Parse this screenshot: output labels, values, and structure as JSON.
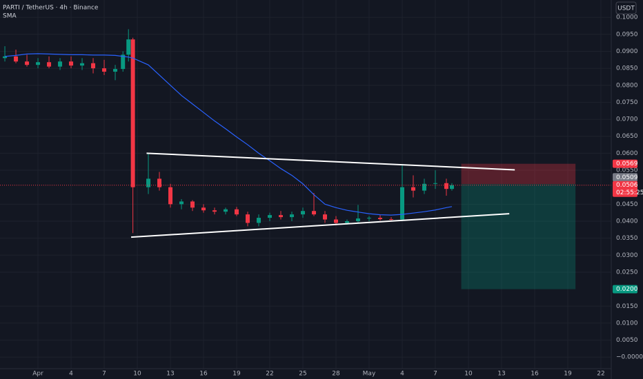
{
  "chart_data": {
    "type": "candlestick",
    "title": "PARTI / TetherUS · 4h · Binance",
    "currency": "USDT",
    "up_color": "#089981",
    "down_color": "#f23645",
    "x": [
      -3,
      -2,
      -1,
      0,
      1,
      2,
      3,
      4,
      5,
      6,
      7,
      7.7,
      8.2,
      8.6,
      10,
      11,
      12,
      13,
      14,
      15,
      16,
      17,
      18,
      19,
      20,
      21,
      22,
      23,
      24,
      25,
      26,
      27,
      28,
      29,
      30,
      31,
      32,
      33,
      34,
      35,
      36,
      37,
      37.5
    ],
    "open": [
      0.088,
      0.0885,
      0.087,
      0.086,
      0.0868,
      0.0855,
      0.087,
      0.0858,
      0.0865,
      0.085,
      0.084,
      0.0848,
      0.089,
      0.0935,
      0.05,
      0.0525,
      0.05,
      0.045,
      0.0458,
      0.044,
      0.0432,
      0.0428,
      0.0435,
      0.042,
      0.0395,
      0.041,
      0.0418,
      0.0412,
      0.042,
      0.043,
      0.042,
      0.0405,
      0.0395,
      0.04,
      0.0408,
      0.041,
      0.0406,
      0.0405,
      0.05,
      0.049,
      0.051,
      0.0512,
      0.0495
    ],
    "high": [
      0.0915,
      0.0905,
      0.089,
      0.088,
      0.0885,
      0.088,
      0.0885,
      0.088,
      0.088,
      0.0875,
      0.086,
      0.09,
      0.0965,
      0.094,
      0.06,
      0.0545,
      0.051,
      0.0465,
      0.0462,
      0.045,
      0.044,
      0.044,
      0.0442,
      0.0428,
      0.042,
      0.0425,
      0.043,
      0.0428,
      0.044,
      0.0483,
      0.043,
      0.0415,
      0.0405,
      0.0448,
      0.0415,
      0.0418,
      0.0412,
      0.0564,
      0.0535,
      0.0525,
      0.055,
      0.0525,
      0.0512
    ],
    "low": [
      0.087,
      0.0865,
      0.0855,
      0.085,
      0.085,
      0.0845,
      0.085,
      0.0845,
      0.0835,
      0.083,
      0.0815,
      0.084,
      0.087,
      0.0365,
      0.048,
      0.049,
      0.044,
      0.0435,
      0.043,
      0.0425,
      0.042,
      0.042,
      0.0415,
      0.0385,
      0.0385,
      0.04,
      0.0405,
      0.04,
      0.041,
      0.0415,
      0.0395,
      0.0388,
      0.039,
      0.0395,
      0.04,
      0.0402,
      0.04,
      0.04,
      0.047,
      0.048,
      0.0495,
      0.0475,
      0.049
    ],
    "close": [
      0.0885,
      0.087,
      0.086,
      0.0868,
      0.0855,
      0.087,
      0.0858,
      0.0865,
      0.085,
      0.084,
      0.0848,
      0.089,
      0.0935,
      0.05,
      0.0525,
      0.05,
      0.045,
      0.0458,
      0.044,
      0.0432,
      0.0428,
      0.0435,
      0.042,
      0.0395,
      0.041,
      0.0418,
      0.0412,
      0.042,
      0.043,
      0.042,
      0.0405,
      0.0395,
      0.04,
      0.0408,
      0.041,
      0.0406,
      0.0405,
      0.05,
      0.049,
      0.051,
      0.0512,
      0.0495,
      0.0506
    ],
    "sma": {
      "name": "SMA",
      "color": "#2962ff",
      "values": [
        0.0885,
        0.0888,
        0.0892,
        0.0893,
        0.0892,
        0.0891,
        0.089,
        0.089,
        0.0889,
        0.0889,
        0.0888,
        0.0885,
        0.0883,
        0.088,
        0.086,
        0.083,
        0.08,
        0.077,
        0.0745,
        0.072,
        0.0695,
        0.0672,
        0.0648,
        0.0625,
        0.06,
        0.0578,
        0.0555,
        0.0535,
        0.051,
        0.0478,
        0.045,
        0.044,
        0.0432,
        0.0427,
        0.0422,
        0.0419,
        0.0418,
        0.042,
        0.0424,
        0.0428,
        0.0433,
        0.044,
        0.0443
      ]
    },
    "trendlines": [
      {
        "x": [
          9.84,
          43.2
        ],
        "y": [
          0.06,
          0.0551
        ]
      },
      {
        "x": [
          8.44,
          42.7
        ],
        "y": [
          0.0353,
          0.0422
        ]
      }
    ],
    "position": {
      "x": [
        38.35,
        48.7
      ],
      "stop": 0.0569,
      "entry": 0.0509,
      "target": {
        "value": 0.02,
        "label": "0.0200"
      }
    },
    "last_price": 0.0506,
    "countdown": "02:55:25",
    "xlim": [
      -3.44,
      51.94
    ],
    "xticks": [
      {
        "value": 0,
        "label": "Apr"
      },
      {
        "value": 3,
        "label": "4"
      },
      {
        "value": 6,
        "label": "7"
      },
      {
        "value": 9,
        "label": "10"
      },
      {
        "value": 12,
        "label": "13"
      },
      {
        "value": 15,
        "label": "16"
      },
      {
        "value": 18,
        "label": "19"
      },
      {
        "value": 21,
        "label": "22"
      },
      {
        "value": 24,
        "label": "25"
      },
      {
        "value": 27,
        "label": "28"
      },
      {
        "value": 30,
        "label": "May"
      },
      {
        "value": 33,
        "label": "4"
      },
      {
        "value": 36,
        "label": "7"
      },
      {
        "value": 39,
        "label": "10"
      },
      {
        "value": 42,
        "label": "13"
      },
      {
        "value": 45,
        "label": "16"
      },
      {
        "value": 48,
        "label": "19"
      },
      {
        "value": 51,
        "label": "22"
      }
    ],
    "ylim": [
      -0.0034,
      0.1051
    ],
    "yticks": [
      {
        "value": 0.1,
        "label": "0.1000"
      },
      {
        "value": 0.095,
        "label": "0.0950"
      },
      {
        "value": 0.09,
        "label": "0.0900"
      },
      {
        "value": 0.085,
        "label": "0.0850"
      },
      {
        "value": 0.08,
        "label": "0.0800"
      },
      {
        "value": 0.075,
        "label": "0.0750"
      },
      {
        "value": 0.07,
        "label": "0.0700"
      },
      {
        "value": 0.065,
        "label": "0.0650"
      },
      {
        "value": 0.06,
        "label": "0.0600"
      },
      {
        "value": 0.055,
        "label": "0.0550"
      },
      {
        "value": 0.045,
        "label": "0.0450"
      },
      {
        "value": 0.04,
        "label": "0.0400"
      },
      {
        "value": 0.035,
        "label": "0.0350"
      },
      {
        "value": 0.03,
        "label": "0.0300"
      },
      {
        "value": 0.025,
        "label": "0.0250"
      },
      {
        "value": 0.015,
        "label": "0.0150"
      },
      {
        "value": 0.01,
        "label": "0.0100"
      },
      {
        "value": 0.005,
        "label": "0.0050"
      },
      {
        "value": 0,
        "label": "−0.0000"
      }
    ]
  }
}
